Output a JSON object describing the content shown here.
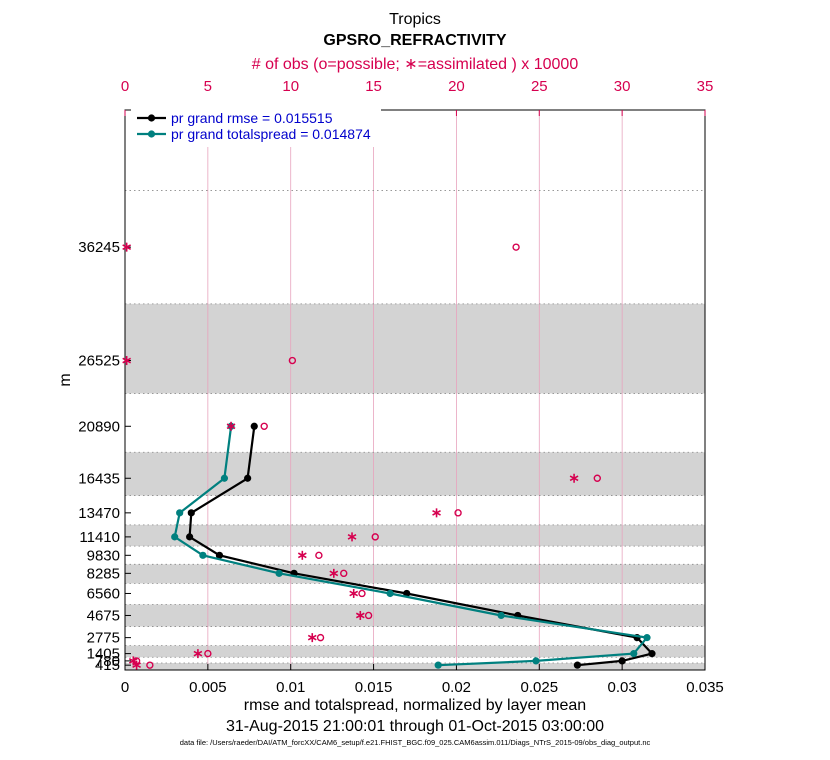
{
  "colors": {
    "rmse": "#000000",
    "spread": "#00807f",
    "obs": "#d6004f",
    "band": "#d3d3d3",
    "legend_text": "#0000cc"
  },
  "chart_data": {
    "type": "line",
    "title": "Tropics",
    "subtitle": "GPSRO_REFRACTIVITY",
    "top_axis_label": "# of obs (o=possible; ∗=assimilated ) x 10000",
    "xlabel": "rmse and totalspread, normalized by layer mean",
    "ylabel": "m",
    "date_range": "31-Aug-2015 21:00:01 through 01-Oct-2015 03:00:00",
    "footnote": "data file: /Users/raeder/DAI/ATM_forcXX/CAM6_setup/f.e21.FHIST_BGC.f09_025.CAM6assim.011/Diags_NTrS_2015-09/obs_diag_output.nc",
    "xlim": [
      0,
      0.035
    ],
    "xticks": [
      0,
      0.005,
      0.01,
      0.015,
      0.02,
      0.025,
      0.03,
      0.035
    ],
    "xtick_labels": [
      "0",
      "0.005",
      "0.01",
      "0.015",
      "0.02",
      "0.025",
      "0.03",
      "0.035"
    ],
    "top_xlim": [
      0,
      35
    ],
    "top_xticks": [
      0,
      5,
      10,
      15,
      20,
      25,
      30,
      35
    ],
    "top_xtick_labels": [
      "0",
      "5",
      "10",
      "15",
      "20",
      "25",
      "30",
      "35"
    ],
    "ylim": [
      0,
      48000
    ],
    "levels": [
      415,
      780,
      1405,
      2775,
      4675,
      6560,
      8285,
      9830,
      11410,
      13470,
      16435,
      20890,
      26525,
      36245
    ],
    "level_labels": [
      "415",
      "780",
      "1405",
      "2775",
      "4675",
      "6560",
      "8285",
      "9830",
      "11410",
      "13470",
      "16435",
      "20890",
      "26525",
      "36245"
    ],
    "series": [
      {
        "name": "pr grand rmse = 0.015515",
        "values": [
          0.0273,
          0.03,
          0.0318,
          0.0309,
          0.0237,
          0.017,
          0.0102,
          0.0057,
          0.0039,
          0.004,
          0.0074,
          0.0078,
          null,
          null
        ]
      },
      {
        "name": "pr grand totalspread = 0.014874",
        "values": [
          0.0189,
          0.0248,
          0.0307,
          0.0315,
          0.0227,
          0.016,
          0.0093,
          0.0047,
          0.003,
          0.0033,
          0.006,
          0.0064,
          null,
          null
        ]
      }
    ],
    "obs_possible": [
      1.5,
      0.7,
      5.0,
      11.8,
      14.7,
      14.3,
      13.2,
      11.7,
      15.1,
      20.1,
      28.5,
      8.4,
      10.1,
      23.6
    ],
    "obs_assimilated": [
      0.7,
      0.5,
      4.4,
      11.3,
      14.2,
      13.8,
      12.6,
      10.7,
      13.7,
      18.8,
      27.1,
      6.4,
      0.1,
      0.1
    ]
  }
}
